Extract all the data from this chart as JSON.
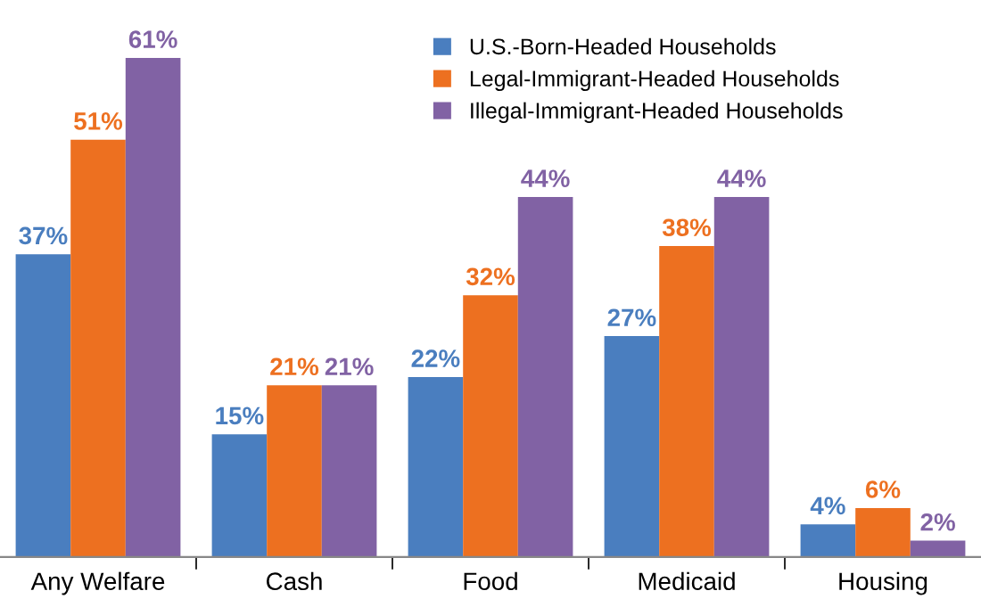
{
  "chart_data": {
    "type": "bar",
    "categories": [
      "Any Welfare",
      "Cash",
      "Food",
      "Medicaid",
      "Housing"
    ],
    "series": [
      {
        "name": "U.S.-Born-Headed Households",
        "color": "#4a7ebf",
        "values": [
          37,
          15,
          22,
          27,
          4
        ],
        "value_labels": [
          "37%",
          "15%",
          "22%",
          "27%",
          "4%"
        ]
      },
      {
        "name": "Legal-Immigrant-Headed Households",
        "color": "#ed7020",
        "values": [
          51,
          21,
          32,
          38,
          6
        ],
        "value_labels": [
          "51%",
          "21%",
          "32%",
          "38%",
          "6%"
        ]
      },
      {
        "name": "Illegal-Immigrant-Headed Households",
        "color": "#8162a4",
        "values": [
          61,
          21,
          44,
          44,
          2
        ],
        "value_labels": [
          "61%",
          "21%",
          "44%",
          "44%",
          "2%"
        ]
      }
    ],
    "legend": "top right",
    "grid": false
  }
}
